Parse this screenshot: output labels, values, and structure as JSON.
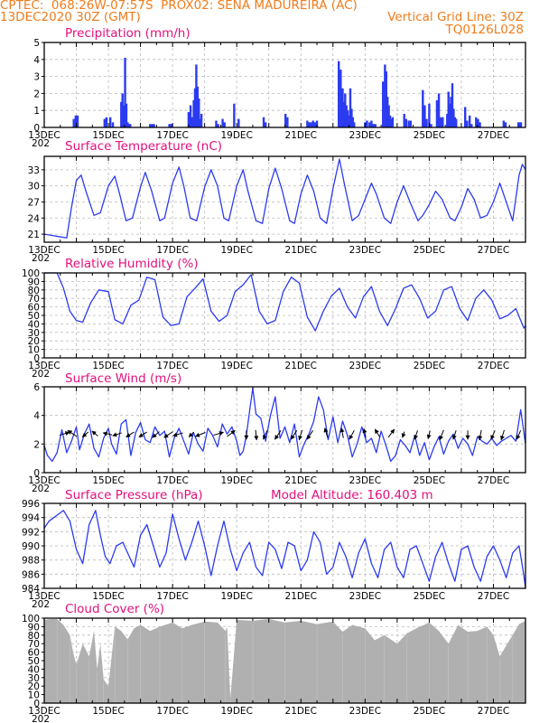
{
  "header": {
    "line1_left": "CPTEC:  068:26W-07:57S  PROX02: SENA MADUREIRA (AC)",
    "line2_left": "13DEC2020 30Z (GMT)",
    "line2_right": "Vertical Grid Line: 30Z",
    "line3_right": "TQ0126L028"
  },
  "colors": {
    "header": "#f07c1c",
    "title": "#e4107c",
    "series": "#2b3bf0",
    "cloud": "#b0b0b0",
    "grid": "#bbbbbb",
    "arrows": "#000000"
  },
  "x_axis": {
    "day_labels": [
      "13DEC",
      "15DEC",
      "17DEC",
      "19DEC",
      "21DEC",
      "23DEC",
      "25DEC",
      "27DEC"
    ],
    "year_fragment": "202"
  },
  "chart_data": [
    {
      "id": "precip",
      "type": "bar",
      "title": "Precipitation (mm/h)",
      "ylim": [
        0,
        5
      ],
      "yticks": [
        0,
        1,
        2,
        3,
        4,
        5
      ],
      "grid": true,
      "xlim_days": [
        13.0,
        28.0
      ],
      "x_days": [
        13.92,
        13.98,
        14.04,
        14.88,
        14.94,
        15.06,
        15.14,
        15.4,
        15.44,
        15.48,
        15.52,
        15.56,
        15.6,
        15.64,
        15.68,
        16.3,
        16.36,
        16.42,
        16.9,
        16.96,
        16.98,
        17.5,
        17.56,
        17.62,
        17.66,
        17.7,
        17.74,
        17.78,
        17.82,
        17.86,
        17.9,
        18.36,
        18.42,
        18.56,
        18.62,
        18.92,
        19.06,
        19.84,
        19.9,
        20.52,
        20.58,
        21.2,
        21.26,
        21.32,
        21.38,
        21.44,
        21.5,
        22.18,
        22.24,
        22.3,
        22.34,
        22.38,
        22.42,
        22.46,
        22.5,
        22.54,
        22.58,
        22.62,
        22.66,
        23.0,
        23.06,
        23.14,
        23.2,
        23.26,
        23.32,
        23.56,
        23.62,
        23.66,
        23.7,
        23.74,
        23.78,
        23.82,
        23.86,
        24.22,
        24.28,
        24.36,
        24.42,
        24.8,
        24.86,
        24.92,
        25.0,
        25.06,
        25.24,
        25.3,
        25.36,
        25.42,
        25.56,
        25.6,
        25.64,
        25.68,
        25.72,
        25.76,
        25.8,
        25.84,
        26.12,
        26.18,
        26.26,
        26.32,
        26.46,
        26.52,
        26.58,
        27.32,
        27.38,
        27.78,
        27.82,
        27.86
      ],
      "values": [
        0.5,
        0.7,
        0.7,
        0.5,
        0.6,
        0.6,
        0.3,
        1.5,
        2.0,
        1.3,
        4.1,
        1.4,
        0.3,
        0.2,
        0.2,
        0.2,
        0.2,
        0.2,
        0.2,
        0.2,
        0.2,
        0.9,
        1.3,
        0.6,
        1.6,
        2.3,
        3.7,
        2.4,
        1.7,
        0.5,
        0.8,
        0.4,
        0.2,
        0.5,
        0.3,
        1.4,
        0.5,
        0.6,
        0.3,
        0.8,
        0.6,
        0.4,
        0.3,
        0.3,
        0.4,
        0.3,
        0.4,
        3.9,
        3.4,
        2.3,
        1.5,
        2.0,
        1.3,
        1.0,
        0.7,
        2.3,
        1.1,
        0.6,
        0.3,
        0.3,
        0.4,
        0.3,
        0.4,
        0.2,
        0.2,
        2.7,
        3.7,
        3.3,
        1.8,
        1.3,
        0.7,
        0.5,
        0.6,
        0.8,
        0.5,
        0.4,
        0.4,
        2.2,
        1.3,
        0.5,
        1.4,
        0.2,
        1.6,
        2.0,
        0.6,
        0.6,
        0.8,
        2.1,
        1.4,
        1.8,
        2.6,
        1.1,
        0.6,
        0.5,
        1.2,
        0.4,
        0.7,
        0.2,
        0.6,
        0.5,
        0.3,
        0.4,
        0.3,
        0.3,
        0.3,
        0.3
      ]
    },
    {
      "id": "temp",
      "type": "line",
      "title": "Surface Temperature (nC)",
      "ylim": [
        19.5,
        35.5
      ],
      "yticks": [
        21,
        24,
        27,
        30,
        33
      ],
      "grid": true,
      "xlim_days": [
        13.0,
        28.0
      ],
      "x_days": [
        13.0,
        13.2,
        13.5,
        13.7,
        13.85,
        14.0,
        14.15,
        14.3,
        14.55,
        14.75,
        15.0,
        15.2,
        15.35,
        15.55,
        15.75,
        16.0,
        16.15,
        16.35,
        16.6,
        16.75,
        17.0,
        17.2,
        17.35,
        17.55,
        17.75,
        18.0,
        18.2,
        18.4,
        18.6,
        18.75,
        19.0,
        19.2,
        19.35,
        19.6,
        19.8,
        20.0,
        20.2,
        20.4,
        20.65,
        20.8,
        21.0,
        21.2,
        21.4,
        21.6,
        21.8,
        22.0,
        22.2,
        22.35,
        22.6,
        22.8,
        23.0,
        23.2,
        23.35,
        23.6,
        23.8,
        24.0,
        24.2,
        24.4,
        24.65,
        24.8,
        25.0,
        25.2,
        25.4,
        25.65,
        25.8,
        26.0,
        26.2,
        26.4,
        26.6,
        26.8,
        27.0,
        27.2,
        27.4,
        27.6,
        27.8,
        27.9,
        28.0
      ],
      "values": [
        21.0,
        20.8,
        20.5,
        20.3,
        26.0,
        31.0,
        32.0,
        29.0,
        24.5,
        25.0,
        30.0,
        31.8,
        28.5,
        23.5,
        24.0,
        29.8,
        32.5,
        29.0,
        23.5,
        24.0,
        30.5,
        33.5,
        30.0,
        24.0,
        23.5,
        29.8,
        33.0,
        30.0,
        24.0,
        23.5,
        30.0,
        33.0,
        29.0,
        23.5,
        23.0,
        29.5,
        33.3,
        29.5,
        23.5,
        23.0,
        28.5,
        32.0,
        29.0,
        24.0,
        23.0,
        29.5,
        35.0,
        30.5,
        23.5,
        24.5,
        27.5,
        30.5,
        28.5,
        24.0,
        23.0,
        27.0,
        30.0,
        27.0,
        23.5,
        24.5,
        26.5,
        29.0,
        27.5,
        24.0,
        23.5,
        26.0,
        29.5,
        27.5,
        24.0,
        24.5,
        27.0,
        30.5,
        27.0,
        23.5,
        32.0,
        34.0,
        33.0
      ]
    },
    {
      "id": "rh",
      "type": "line",
      "title": "Relative Humidity (%)",
      "ylim": [
        0,
        100
      ],
      "yticks": [
        0,
        10,
        20,
        30,
        40,
        50,
        60,
        70,
        80,
        90,
        100
      ],
      "grid": true,
      "xlim_days": [
        13.0,
        28.0
      ],
      "x_days": [
        13.0,
        13.2,
        13.4,
        13.6,
        13.8,
        14.0,
        14.2,
        14.45,
        14.7,
        15.0,
        15.2,
        15.45,
        15.7,
        15.95,
        16.2,
        16.45,
        16.7,
        16.95,
        17.2,
        17.45,
        17.7,
        17.95,
        18.2,
        18.45,
        18.7,
        18.95,
        19.2,
        19.45,
        19.7,
        19.95,
        20.2,
        20.45,
        20.7,
        20.95,
        21.2,
        21.45,
        21.7,
        21.95,
        22.2,
        22.45,
        22.7,
        22.95,
        23.2,
        23.45,
        23.7,
        23.95,
        24.2,
        24.45,
        24.7,
        24.95,
        25.2,
        25.45,
        25.7,
        25.95,
        26.2,
        26.45,
        26.7,
        26.95,
        27.2,
        27.45,
        27.7,
        27.95,
        28.0
      ],
      "values": [
        100,
        100,
        100,
        82,
        55,
        44,
        42,
        65,
        80,
        78,
        45,
        40,
        62,
        68,
        95,
        92,
        48,
        38,
        40,
        72,
        82,
        93,
        55,
        43,
        50,
        78,
        86,
        98,
        55,
        40,
        44,
        78,
        95,
        88,
        48,
        32,
        55,
        73,
        82,
        60,
        47,
        72,
        84,
        55,
        38,
        58,
        82,
        86,
        70,
        47,
        55,
        80,
        84,
        58,
        44,
        70,
        80,
        68,
        46,
        50,
        58,
        35,
        38
      ]
    },
    {
      "id": "wind",
      "type": "line",
      "title": "Surface Wind (m/s)",
      "ylim": [
        0,
        6
      ],
      "yticks": [
        0,
        2,
        4,
        6
      ],
      "grid": true,
      "xlim_days": [
        13.0,
        28.0
      ],
      "x_days": [
        13.0,
        13.1,
        13.25,
        13.4,
        13.55,
        13.7,
        13.85,
        14.0,
        14.1,
        14.25,
        14.4,
        14.55,
        14.7,
        14.85,
        15.0,
        15.1,
        15.25,
        15.4,
        15.55,
        15.7,
        15.85,
        16.0,
        16.15,
        16.3,
        16.45,
        16.6,
        16.75,
        16.9,
        17.05,
        17.2,
        17.35,
        17.5,
        17.65,
        17.8,
        17.95,
        18.1,
        18.25,
        18.4,
        18.55,
        18.7,
        18.85,
        19.0,
        19.1,
        19.2,
        19.3,
        19.4,
        19.5,
        19.6,
        19.75,
        19.9,
        20.05,
        20.2,
        20.35,
        20.5,
        20.65,
        20.8,
        20.95,
        21.1,
        21.25,
        21.4,
        21.55,
        21.7,
        21.85,
        22.0,
        22.15,
        22.3,
        22.45,
        22.6,
        22.75,
        22.9,
        23.05,
        23.2,
        23.35,
        23.5,
        23.65,
        23.8,
        23.95,
        24.1,
        24.25,
        24.4,
        24.55,
        24.7,
        24.85,
        25.0,
        25.15,
        25.3,
        25.45,
        25.6,
        25.75,
        25.9,
        26.05,
        26.2,
        26.35,
        26.5,
        26.65,
        26.8,
        26.95,
        27.1,
        27.25,
        27.4,
        27.55,
        27.7,
        27.85,
        28.0
      ],
      "values": [
        1.9,
        1.2,
        0.8,
        1.4,
        3.0,
        1.4,
        2.2,
        3.2,
        1.6,
        2.7,
        3.4,
        1.7,
        1.1,
        2.4,
        3.1,
        2.0,
        1.3,
        3.4,
        3.7,
        1.2,
        2.8,
        3.5,
        2.3,
        2.1,
        3.2,
        2.6,
        2.9,
        1.1,
        2.4,
        3.1,
        2.2,
        1.3,
        2.8,
        2.0,
        1.5,
        3.1,
        2.6,
        1.8,
        3.4,
        2.7,
        3.2,
        2.2,
        1.2,
        1.5,
        2.6,
        4.3,
        5.9,
        4.1,
        3.8,
        2.2,
        4.0,
        5.3,
        2.4,
        3.2,
        2.1,
        3.4,
        1.1,
        2.0,
        2.7,
        3.6,
        5.3,
        4.4,
        2.3,
        3.9,
        2.1,
        3.6,
        2.6,
        1.1,
        2.0,
        3.2,
        2.1,
        2.4,
        1.4,
        2.9,
        1.9,
        0.8,
        1.2,
        2.3,
        1.9,
        1.4,
        2.6,
        1.2,
        2.1,
        0.9,
        1.8,
        2.5,
        1.3,
        2.2,
        2.7,
        1.7,
        2.4,
        2.0,
        1.2,
        2.5,
        2.2,
        2.0,
        2.4,
        1.9,
        2.2,
        2.4,
        2.6,
        2.2,
        4.4,
        2.0
      ],
      "arrows": {
        "x_days": [
          13.6,
          13.9,
          14.3,
          14.6,
          15.0,
          15.3,
          15.7,
          16.1,
          16.5,
          16.9,
          17.2,
          17.6,
          17.9,
          18.4,
          18.8,
          19.3,
          19.6,
          19.9,
          20.3,
          20.8,
          21.0,
          21.3,
          21.8,
          22.3,
          22.6,
          23.0,
          23.4,
          23.8,
          24.2,
          24.6,
          25.0,
          25.4,
          25.8,
          26.2,
          26.6,
          27.0,
          27.3,
          27.8
        ],
        "u": [
          1.0,
          -0.9,
          -0.6,
          -0.6,
          -0.9,
          -0.9,
          -0.8,
          -0.8,
          -0.7,
          -0.9,
          -1.0,
          -0.5,
          -1.0,
          1.0,
          0.8,
          0.0,
          0.1,
          -0.4,
          -0.6,
          -0.6,
          -0.3,
          -0.6,
          -0.3,
          -0.2,
          -0.5,
          -0.2,
          -0.5,
          0.6,
          -0.2,
          -0.3,
          -0.2,
          -0.4,
          -0.3,
          0.0,
          -0.2,
          -0.4,
          -0.3,
          -0.4
        ],
        "v": [
          0.3,
          0.6,
          -0.5,
          0.5,
          0.2,
          -0.3,
          -0.5,
          -0.5,
          -0.6,
          -0.6,
          -0.3,
          -0.5,
          -0.4,
          0.3,
          0.6,
          -0.9,
          -1.0,
          -0.9,
          -0.9,
          -0.9,
          -1.0,
          -0.9,
          1.0,
          1.0,
          -0.9,
          0.9,
          0.8,
          0.8,
          -0.6,
          -0.9,
          -0.8,
          -1.0,
          -0.9,
          -0.9,
          -1.0,
          -0.9,
          -1.0,
          -0.9
        ]
      }
    },
    {
      "id": "pressure",
      "type": "line",
      "title": "Surface Pressure (hPa)",
      "ylim": [
        984,
        996
      ],
      "yticks": [
        984,
        986,
        988,
        990,
        992,
        994,
        996
      ],
      "grid": true,
      "xlim_days": [
        13.0,
        28.0
      ],
      "x_days": [
        13.0,
        13.15,
        13.3,
        13.45,
        13.6,
        13.8,
        14.0,
        14.2,
        14.4,
        14.6,
        14.75,
        14.9,
        15.05,
        15.25,
        15.45,
        15.65,
        15.8,
        16.0,
        16.2,
        16.4,
        16.6,
        16.8,
        17.0,
        17.2,
        17.4,
        17.6,
        17.8,
        18.0,
        18.2,
        18.4,
        18.6,
        18.8,
        19.0,
        19.2,
        19.4,
        19.6,
        19.8,
        20.0,
        20.2,
        20.4,
        20.6,
        20.8,
        21.0,
        21.2,
        21.4,
        21.6,
        21.8,
        22.0,
        22.2,
        22.4,
        22.6,
        22.8,
        23.0,
        23.2,
        23.4,
        23.6,
        23.8,
        24.0,
        24.2,
        24.4,
        24.6,
        24.8,
        25.0,
        25.2,
        25.4,
        25.6,
        25.8,
        26.0,
        26.2,
        26.4,
        26.6,
        26.8,
        27.0,
        27.2,
        27.4,
        27.6,
        27.8,
        27.95,
        28.0
      ],
      "values": [
        992.5,
        993.5,
        994.0,
        994.5,
        995.0,
        993.5,
        989.5,
        987.5,
        993.0,
        995.0,
        991.5,
        988.5,
        987.5,
        990.0,
        990.5,
        988.5,
        987.0,
        991.5,
        993.0,
        990.0,
        987.0,
        989.0,
        994.5,
        991.0,
        988.0,
        990.5,
        993.5,
        990.0,
        985.8,
        990.0,
        993.5,
        989.5,
        986.5,
        989.0,
        990.5,
        987.0,
        985.8,
        990.5,
        989.5,
        986.8,
        990.5,
        990.0,
        986.5,
        988.0,
        992.0,
        990.5,
        986.0,
        987.0,
        990.5,
        988.5,
        985.5,
        989.0,
        991.0,
        987.5,
        985.5,
        989.5,
        990.5,
        987.0,
        985.5,
        989.5,
        990.0,
        987.5,
        985.0,
        988.5,
        990.5,
        987.5,
        985.0,
        989.5,
        990.0,
        987.0,
        985.0,
        988.5,
        990.0,
        988.0,
        985.5,
        989.0,
        990.0,
        985.8,
        984.0
      ]
    },
    {
      "id": "cloud",
      "type": "area",
      "title": "Cloud Cover (%)",
      "ylim": [
        0,
        100
      ],
      "yticks": [
        0,
        10,
        20,
        30,
        40,
        50,
        60,
        70,
        80,
        90,
        100
      ],
      "grid": true,
      "xlim_days": [
        13.0,
        28.0
      ],
      "x_days": [
        13.0,
        13.2,
        13.4,
        13.6,
        13.8,
        13.9,
        14.0,
        14.2,
        14.4,
        14.55,
        14.65,
        14.75,
        14.85,
        15.0,
        15.2,
        15.4,
        15.6,
        15.8,
        16.0,
        16.3,
        16.6,
        17.0,
        17.3,
        17.6,
        18.0,
        18.4,
        18.65,
        18.7,
        18.8,
        19.0,
        19.5,
        20.0,
        20.5,
        21.0,
        21.5,
        22.0,
        22.3,
        22.6,
        23.0,
        23.3,
        23.6,
        24.0,
        24.3,
        24.6,
        25.0,
        25.3,
        25.6,
        25.9,
        26.2,
        26.5,
        26.8,
        27.0,
        27.2,
        27.4,
        27.6,
        27.8,
        28.0
      ],
      "values": [
        98,
        99,
        99,
        92,
        80,
        60,
        45,
        70,
        55,
        85,
        40,
        70,
        28,
        20,
        90,
        85,
        75,
        88,
        92,
        85,
        90,
        95,
        88,
        92,
        96,
        95,
        85,
        90,
        5,
        98,
        97,
        99,
        95,
        97,
        93,
        96,
        84,
        92,
        88,
        74,
        80,
        70,
        82,
        88,
        95,
        85,
        70,
        92,
        84,
        85,
        90,
        80,
        55,
        68,
        80,
        93,
        97
      ]
    }
  ]
}
